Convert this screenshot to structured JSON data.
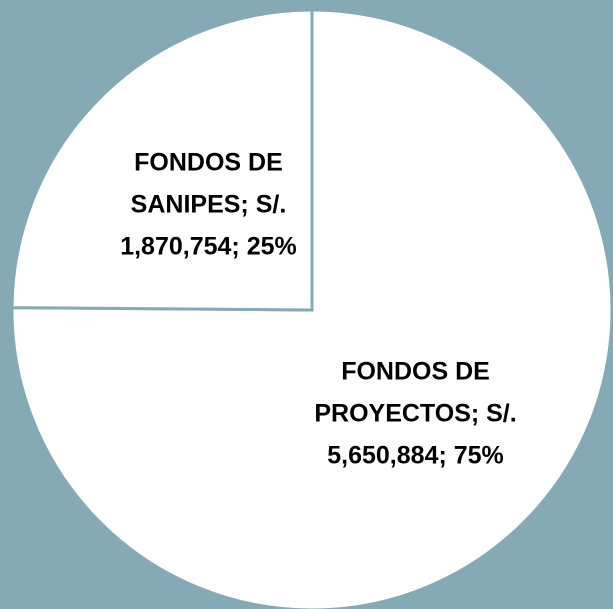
{
  "chart_data": {
    "type": "pie",
    "labels": [
      "FONDOS DE PROYECTOS; S/. 5,650,884; 75%",
      "FONDOS DE SANIPES; S/. 1,870,754; 25%"
    ],
    "values": [
      5650884,
      1870754
    ],
    "colors": [
      "#ffffff",
      "#ffffff"
    ],
    "start_angle": 90,
    "direction": "clockwise"
  }
}
